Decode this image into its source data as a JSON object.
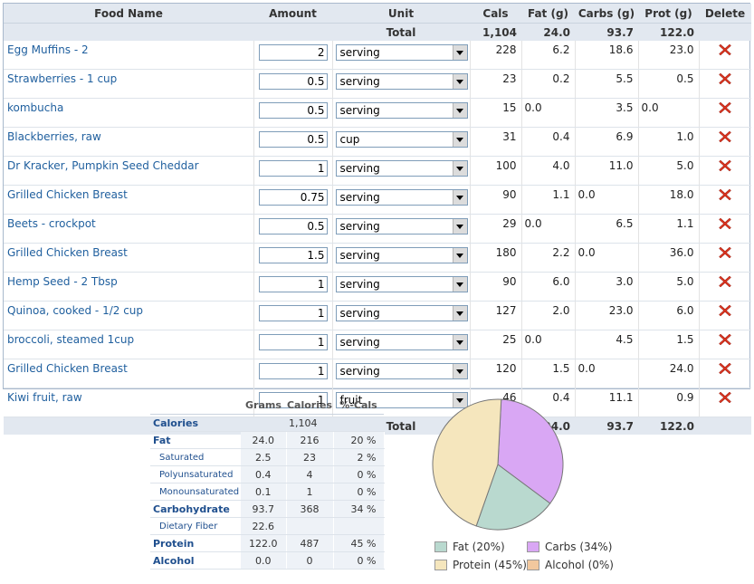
{
  "columns": [
    "Food Name",
    "Amount",
    "Unit",
    "Cals",
    "Fat (g)",
    "Carbs (g)",
    "Prot (g)",
    "Delete"
  ],
  "total": {
    "label": "Total",
    "cals": "1,104",
    "fat": "24.0",
    "carbs": "93.7",
    "prot": "122.0"
  },
  "items": [
    {
      "name": "Egg Muffins - 2",
      "amount": "2",
      "unit": "serving",
      "cals": "228",
      "fat": "6.2",
      "carbs": "18.6",
      "prot": "23.0"
    },
    {
      "name": "Strawberries - 1 cup",
      "amount": "0.5",
      "unit": "serving",
      "cals": "23",
      "fat": "0.2",
      "carbs": "5.5",
      "prot": "0.5"
    },
    {
      "name": "kombucha",
      "amount": "0.5",
      "unit": "serving",
      "cals": "15",
      "fat": "0.0",
      "carbs": "3.5",
      "prot": "0.0"
    },
    {
      "name": "Blackberries, raw",
      "amount": "0.5",
      "unit": "cup",
      "cals": "31",
      "fat": "0.4",
      "carbs": "6.9",
      "prot": "1.0"
    },
    {
      "name": "Dr Kracker, Pumpkin Seed Cheddar",
      "amount": "1",
      "unit": "serving",
      "cals": "100",
      "fat": "4.0",
      "carbs": "11.0",
      "prot": "5.0"
    },
    {
      "name": "Grilled Chicken Breast",
      "amount": "0.75",
      "unit": "serving",
      "cals": "90",
      "fat": "1.1",
      "carbs": "0.0",
      "prot": "18.0"
    },
    {
      "name": "Beets - crockpot",
      "amount": "0.5",
      "unit": "serving",
      "cals": "29",
      "fat": "0.0",
      "carbs": "6.5",
      "prot": "1.1"
    },
    {
      "name": "Grilled Chicken Breast",
      "amount": "1.5",
      "unit": "serving",
      "cals": "180",
      "fat": "2.2",
      "carbs": "0.0",
      "prot": "36.0"
    },
    {
      "name": "Hemp Seed - 2 Tbsp",
      "amount": "1",
      "unit": "serving",
      "cals": "90",
      "fat": "6.0",
      "carbs": "3.0",
      "prot": "5.0"
    },
    {
      "name": "Quinoa, cooked - 1/2 cup",
      "amount": "1",
      "unit": "serving",
      "cals": "127",
      "fat": "2.0",
      "carbs": "23.0",
      "prot": "6.0"
    },
    {
      "name": "broccoli, steamed 1cup",
      "amount": "1",
      "unit": "serving",
      "cals": "25",
      "fat": "0.0",
      "carbs": "4.5",
      "prot": "1.5"
    },
    {
      "name": "Grilled Chicken Breast",
      "amount": "1",
      "unit": "serving",
      "cals": "120",
      "fat": "1.5",
      "carbs": "0.0",
      "prot": "24.0"
    },
    {
      "name": "Kiwi fruit, raw",
      "amount": "1",
      "unit": "fruit",
      "cals": "46",
      "fat": "0.4",
      "carbs": "11.1",
      "prot": "0.9"
    }
  ],
  "nutrition": {
    "headers": [
      "Grams",
      "Calories",
      "%-Cals"
    ],
    "rows": [
      {
        "label": "Calories",
        "grams": "",
        "calories": "1,104",
        "pct": "",
        "level": "main"
      },
      {
        "label": "Fat",
        "grams": "24.0",
        "calories": "216",
        "pct": "20 %",
        "level": "main"
      },
      {
        "label": "Saturated",
        "grams": "2.5",
        "calories": "23",
        "pct": "2 %",
        "level": "sub"
      },
      {
        "label": "Polyunsaturated",
        "grams": "0.4",
        "calories": "4",
        "pct": "0 %",
        "level": "sub"
      },
      {
        "label": "Monounsaturated",
        "grams": "0.1",
        "calories": "1",
        "pct": "0 %",
        "level": "sub"
      },
      {
        "label": "Carbohydrate",
        "grams": "93.7",
        "calories": "368",
        "pct": "34 %",
        "level": "main"
      },
      {
        "label": "Dietary Fiber",
        "grams": "22.6",
        "calories": "",
        "pct": "",
        "level": "sub"
      },
      {
        "label": "Protein",
        "grams": "122.0",
        "calories": "487",
        "pct": "45 %",
        "level": "main"
      },
      {
        "label": "Alcohol",
        "grams": "0.0",
        "calories": "0",
        "pct": "0 %",
        "level": "main"
      }
    ]
  },
  "chart_data": {
    "type": "pie",
    "categories": [
      "Carbs",
      "Fat",
      "Protein",
      "Alcohol"
    ],
    "values": [
      34,
      20,
      45,
      0
    ],
    "colors": [
      "#d9a7f4",
      "#b9d9cf",
      "#f5e6bd",
      "#f2c89e"
    ],
    "legend": [
      {
        "label": "Fat (20%)",
        "color": "#b9d9cf"
      },
      {
        "label": "Carbs (34%)",
        "color": "#d9a7f4"
      },
      {
        "label": "Protein (45%)",
        "color": "#f5e6bd"
      },
      {
        "label": "Alcohol (0%)",
        "color": "#f2c89e"
      }
    ]
  },
  "icons": {
    "delete": "delete-x-icon",
    "dropdown": "chevron-down-icon"
  },
  "accent": {
    "link": "#1f5f9e",
    "delete": "#d9331f",
    "header_bg": "#e2e8f0"
  }
}
